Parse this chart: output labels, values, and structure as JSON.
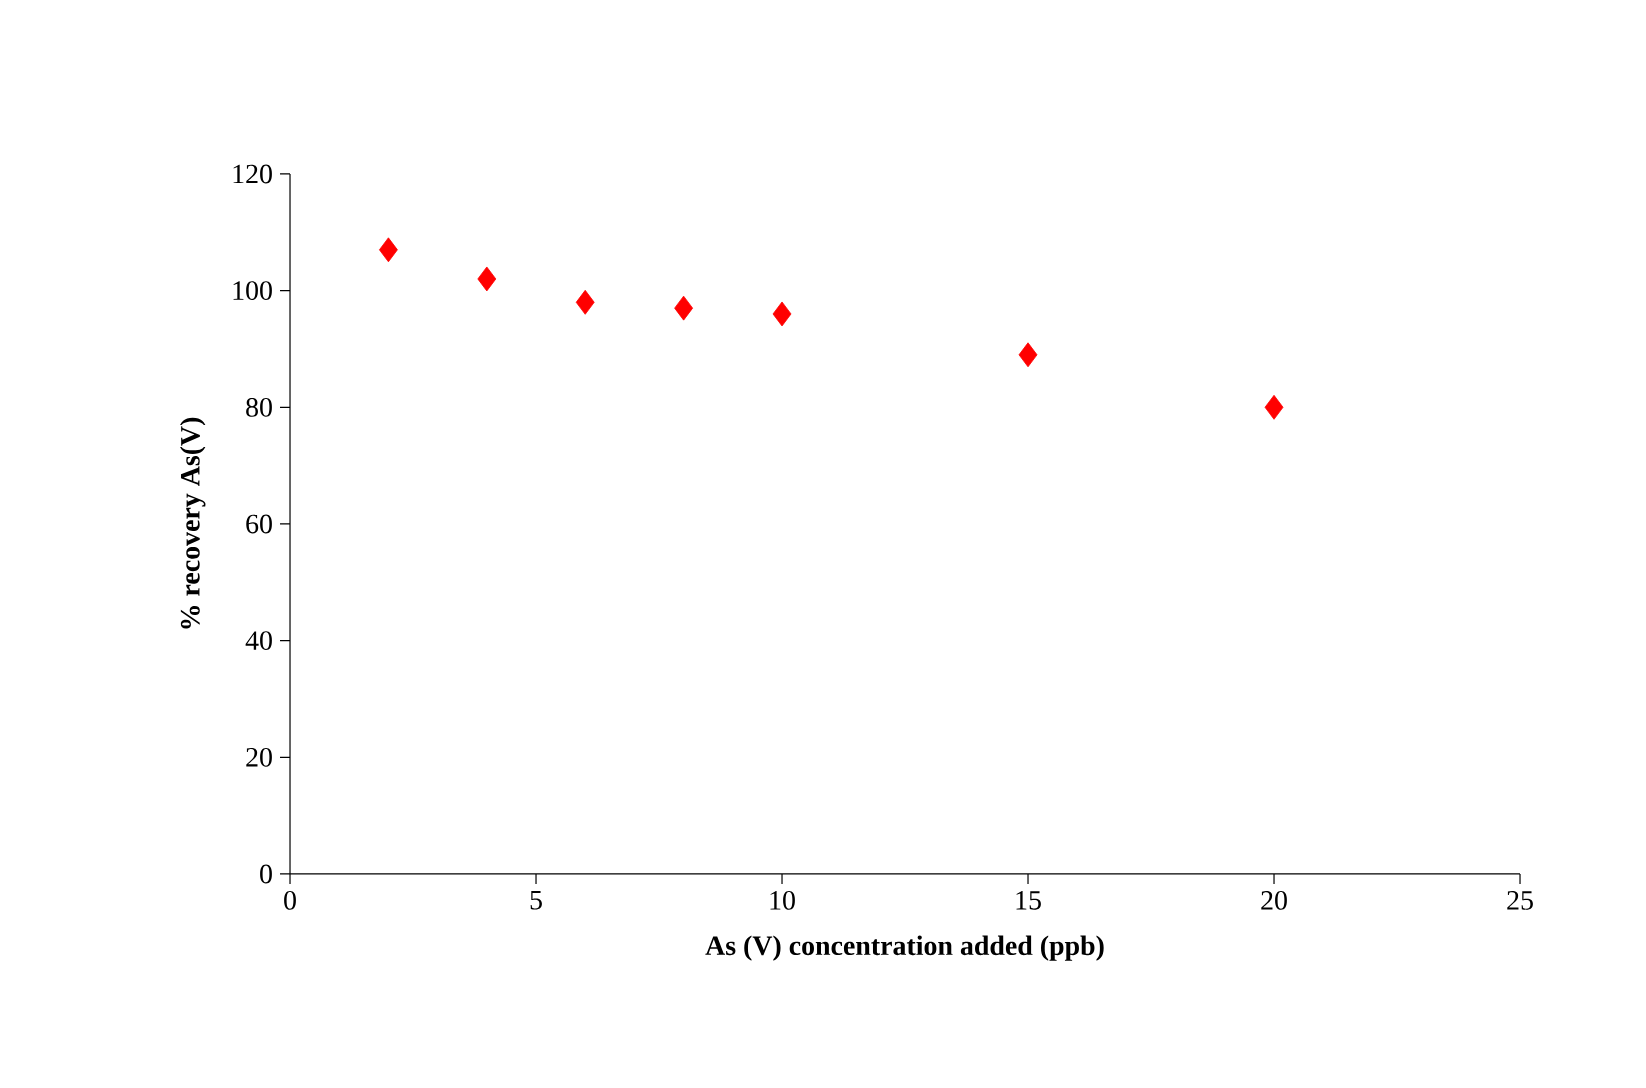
{
  "chart_data": {
    "type": "scatter",
    "xlabel": "As (V) concentration added (ppb)",
    "ylabel": "% recovery As(V)",
    "x": [
      2,
      4,
      6,
      8,
      10,
      15,
      20
    ],
    "series": [
      {
        "color": "#ff0000",
        "values": [
          107,
          102,
          98,
          97,
          96,
          89,
          80
        ]
      }
    ],
    "xlim": [
      0,
      25
    ],
    "xticks": [
      0,
      5,
      10,
      15,
      20,
      25
    ],
    "ylim": [
      0,
      120
    ],
    "yticks": [
      0,
      20,
      40,
      60,
      80,
      100,
      120
    ],
    "marker": "diamond",
    "grid": false
  }
}
